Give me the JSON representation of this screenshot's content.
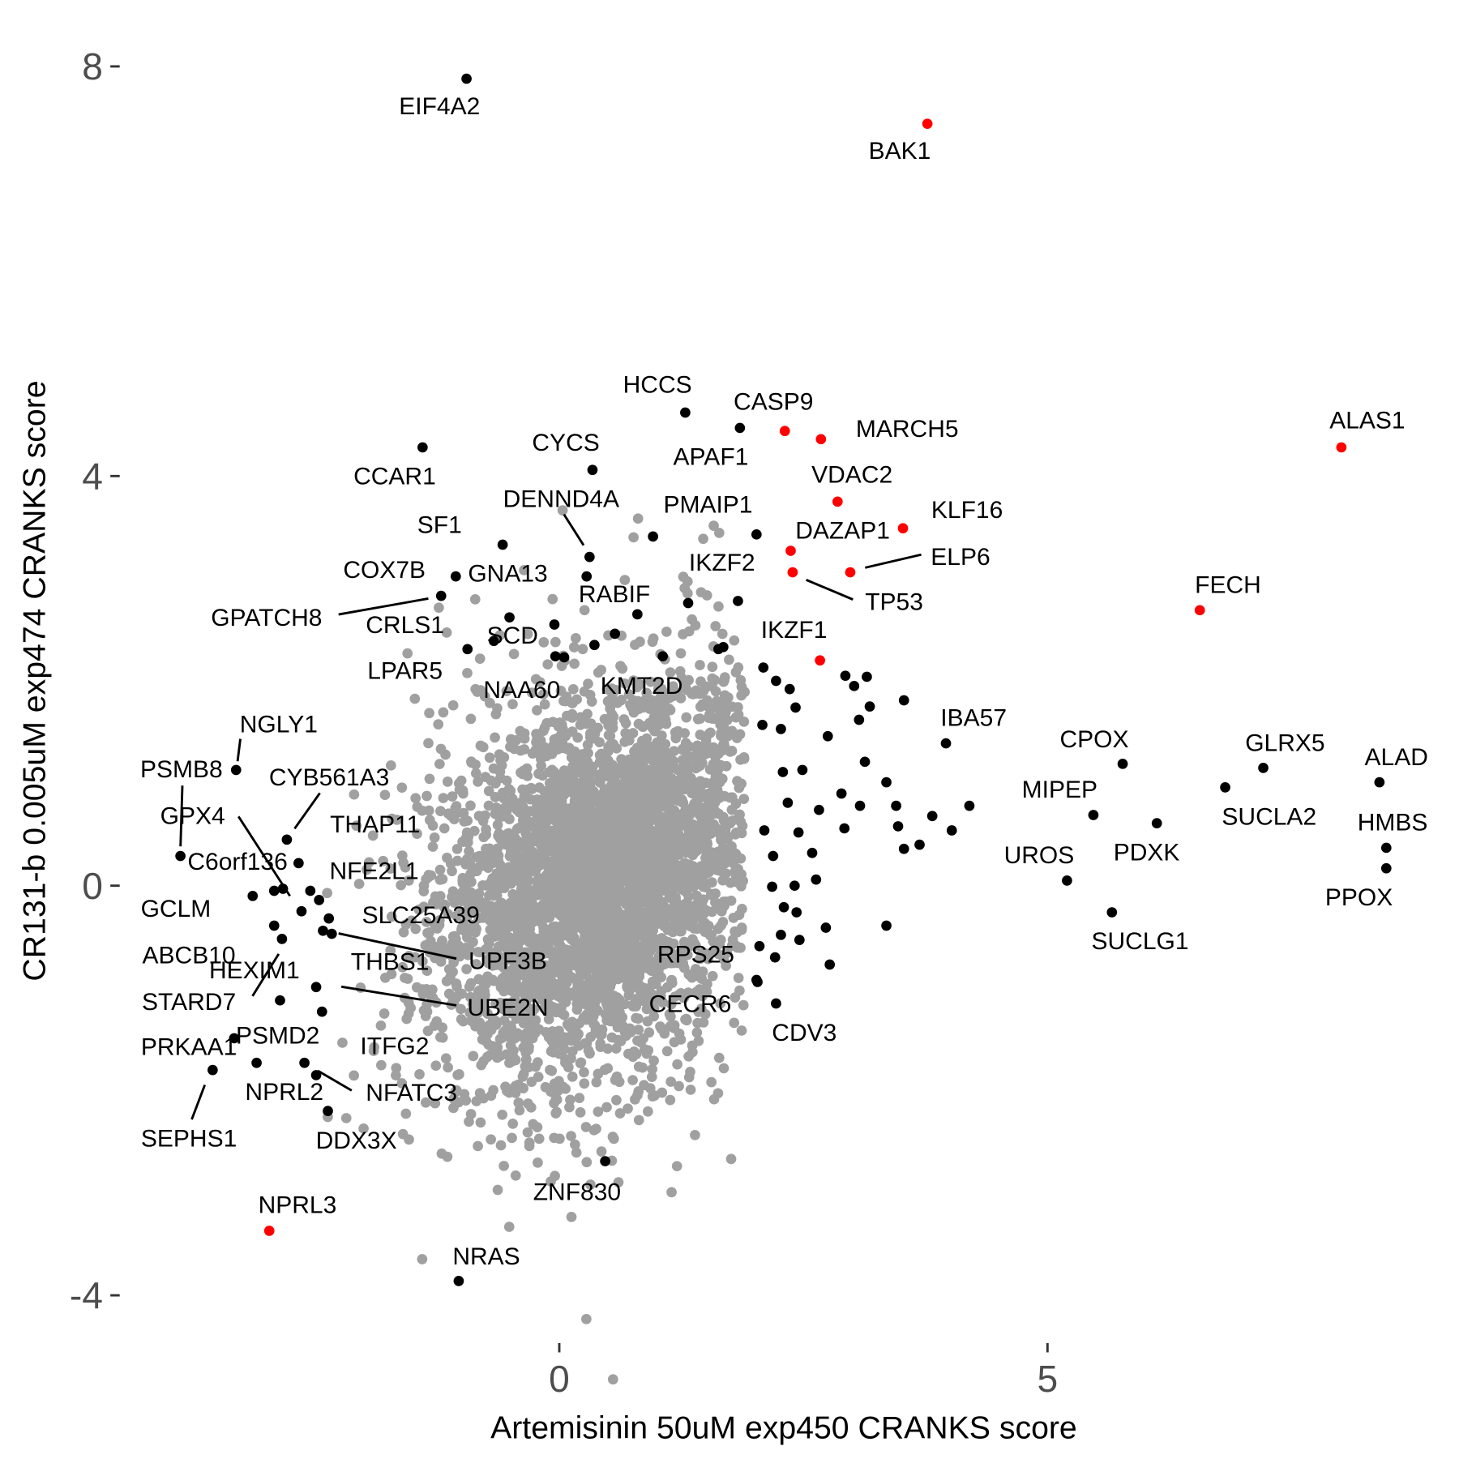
{
  "chart_data": {
    "type": "scatter",
    "title": "",
    "xlabel": "Artemisinin 50uM exp450 CRANKS score",
    "ylabel": "CR131-b 0.005uM exp474 CRANKS score",
    "xlim": [
      -4.3,
      8.9
    ],
    "ylim": [
      -4.6,
      8.3
    ],
    "x_ticks": [
      0,
      5
    ],
    "y_ticks": [
      -4,
      0,
      4,
      8
    ],
    "grid": false,
    "colors": {
      "background": "#a0a0a0",
      "hit": "#000000",
      "highlight": "#ff0000"
    },
    "background_cloud": {
      "n": 4000,
      "mean": [
        0.45,
        0.05
      ],
      "sd": [
        0.85,
        0.95
      ],
      "corr": 0.3
    },
    "labeled_points": [
      {
        "name": "EIF4A2",
        "x": -0.95,
        "y": 7.88,
        "highlight": false
      },
      {
        "name": "BAK1",
        "x": 3.77,
        "y": 7.44,
        "highlight": true
      },
      {
        "name": "HCCS",
        "x": 1.29,
        "y": 4.62,
        "highlight": false
      },
      {
        "name": "APAF1",
        "x": 1.85,
        "y": 4.47,
        "highlight": false
      },
      {
        "name": "CASP9",
        "x": 2.31,
        "y": 4.44,
        "highlight": true
      },
      {
        "name": "MARCH5",
        "x": 2.68,
        "y": 4.36,
        "highlight": true
      },
      {
        "name": "ALAS1",
        "x": 8.01,
        "y": 4.28,
        "highlight": true
      },
      {
        "name": "CCAR1",
        "x": -1.4,
        "y": 4.28,
        "highlight": false
      },
      {
        "name": "CYCS",
        "x": 0.34,
        "y": 4.06,
        "highlight": false
      },
      {
        "name": "VDAC2",
        "x": 2.85,
        "y": 3.75,
        "highlight": true
      },
      {
        "name": "KLF16",
        "x": 3.52,
        "y": 3.49,
        "highlight": true
      },
      {
        "name": "PMAIP1",
        "x": 0.96,
        "y": 3.41,
        "highlight": false
      },
      {
        "name": "IKZF2",
        "x": 2.02,
        "y": 3.43,
        "highlight": false
      },
      {
        "name": "SF1",
        "x": -0.58,
        "y": 3.33,
        "highlight": false
      },
      {
        "name": "DAZAP1",
        "x": 2.37,
        "y": 3.27,
        "highlight": true
      },
      {
        "name": "DENND4A",
        "x": 0.31,
        "y": 3.21,
        "highlight": false
      },
      {
        "name": "ELP6",
        "x": 2.98,
        "y": 3.06,
        "highlight": true
      },
      {
        "name": "TP53",
        "x": 2.39,
        "y": 3.06,
        "highlight": true
      },
      {
        "name": "GNA13",
        "x": 0.28,
        "y": 3.02,
        "highlight": false
      },
      {
        "name": "COX7B",
        "x": -1.06,
        "y": 3.02,
        "highlight": false
      },
      {
        "name": "GPATCH8",
        "x": -1.21,
        "y": 2.83,
        "highlight": false
      },
      {
        "name": "FECH",
        "x": 6.56,
        "y": 2.69,
        "highlight": true
      },
      {
        "name": "RABIF",
        "x": 0.8,
        "y": 2.65,
        "highlight": false
      },
      {
        "name": "CRLS1",
        "x": -0.51,
        "y": 2.62,
        "highlight": false
      },
      {
        "name": "SCD",
        "x": -0.67,
        "y": 2.39,
        "highlight": false
      },
      {
        "name": "LPAR5",
        "x": -0.94,
        "y": 2.31,
        "highlight": false
      },
      {
        "name": "IKZF1",
        "x": 2.67,
        "y": 2.2,
        "highlight": true
      },
      {
        "name": "NAA60",
        "x": -0.04,
        "y": 2.24,
        "highlight": false
      },
      {
        "name": "KMT2D",
        "x": 1.06,
        "y": 2.24,
        "highlight": false
      },
      {
        "name": "IBA57",
        "x": 3.96,
        "y": 1.39,
        "highlight": false
      },
      {
        "name": "NGLY1",
        "x": -3.31,
        "y": 1.13,
        "highlight": false
      },
      {
        "name": "CPOX",
        "x": 5.77,
        "y": 1.19,
        "highlight": false
      },
      {
        "name": "GLRX5",
        "x": 7.21,
        "y": 1.15,
        "highlight": false
      },
      {
        "name": "ALAD",
        "x": 8.4,
        "y": 1.01,
        "highlight": false
      },
      {
        "name": "SUCLA2",
        "x": 6.82,
        "y": 0.96,
        "highlight": false
      },
      {
        "name": "MIPEP",
        "x": 5.47,
        "y": 0.69,
        "highlight": false
      },
      {
        "name": "PDXK",
        "x": 6.12,
        "y": 0.61,
        "highlight": false
      },
      {
        "name": "CYB561A3",
        "x": -2.79,
        "y": 0.45,
        "highlight": false
      },
      {
        "name": "HMBS",
        "x": 8.47,
        "y": 0.37,
        "highlight": false
      },
      {
        "name": "PSMB8",
        "x": -3.88,
        "y": 0.29,
        "highlight": false
      },
      {
        "name": "C6orf136",
        "x": -2.67,
        "y": 0.22,
        "highlight": false
      },
      {
        "name": "PPOX",
        "x": 8.47,
        "y": 0.17,
        "highlight": false
      },
      {
        "name": "UROS",
        "x": 5.2,
        "y": 0.05,
        "highlight": false
      },
      {
        "name": "GPX4",
        "x": -2.83,
        "y": -0.03,
        "highlight": false
      },
      {
        "name": "GCLM",
        "x": -3.14,
        "y": -0.1,
        "highlight": false
      },
      {
        "name": "THAP11",
        "x": -2.46,
        "y": -0.14,
        "highlight": false
      },
      {
        "name": "NFE2L1",
        "x": -2.36,
        "y": -0.32,
        "highlight": false
      },
      {
        "name": "SLC25A39",
        "x": -2.64,
        "y": -0.25,
        "highlight": false
      },
      {
        "name": "SUCLG1",
        "x": 5.66,
        "y": -0.26,
        "highlight": false
      },
      {
        "name": "ABCB10",
        "x": -2.92,
        "y": -0.39,
        "highlight": false
      },
      {
        "name": "HEXIM1",
        "x": -2.84,
        "y": -0.52,
        "highlight": false
      },
      {
        "name": "UPF3B",
        "x": -2.33,
        "y": -0.47,
        "highlight": false
      },
      {
        "name": "THBS1",
        "x": -2.42,
        "y": -0.44,
        "highlight": false
      },
      {
        "name": "RPS25",
        "x": 2.05,
        "y": -0.59,
        "highlight": false
      },
      {
        "name": "UBE2N",
        "x": -2.49,
        "y": -0.99,
        "highlight": false
      },
      {
        "name": "CECR6",
        "x": 2.02,
        "y": -0.92,
        "highlight": false
      },
      {
        "name": "CDV3",
        "x": 2.22,
        "y": -1.15,
        "highlight": false
      },
      {
        "name": "STARD7",
        "x": -2.86,
        "y": -1.12,
        "highlight": false
      },
      {
        "name": "PSMD2",
        "x": -2.43,
        "y": -1.23,
        "highlight": false
      },
      {
        "name": "PRKAA1",
        "x": -3.33,
        "y": -1.49,
        "highlight": false
      },
      {
        "name": "ITFG2",
        "x": -3.1,
        "y": -1.73,
        "highlight": false
      },
      {
        "name": "NPRL2",
        "x": -2.61,
        "y": -1.73,
        "highlight": false
      },
      {
        "name": "SEPHS1",
        "x": -3.55,
        "y": -1.8,
        "highlight": false
      },
      {
        "name": "NFATC3",
        "x": -2.49,
        "y": -1.85,
        "highlight": false
      },
      {
        "name": "DDX3X",
        "x": -2.37,
        "y": -2.2,
        "highlight": false
      },
      {
        "name": "ZNF830",
        "x": 0.47,
        "y": -2.69,
        "highlight": false
      },
      {
        "name": "NPRL3",
        "x": -2.97,
        "y": -3.37,
        "highlight": true
      },
      {
        "name": "NRAS",
        "x": -1.03,
        "y": -3.86,
        "highlight": false
      }
    ],
    "unlabeled_hits": [
      [
        1.32,
        2.76
      ],
      [
        1.83,
        2.78
      ],
      [
        0.57,
        2.46
      ],
      [
        -0.05,
        2.55
      ],
      [
        1.63,
        2.31
      ],
      [
        1.68,
        2.33
      ],
      [
        0.05,
        2.23
      ],
      [
        0.36,
        2.35
      ],
      [
        2.09,
        2.13
      ],
      [
        2.22,
        2.0
      ],
      [
        2.36,
        1.92
      ],
      [
        2.42,
        1.74
      ],
      [
        2.93,
        2.05
      ],
      [
        3.15,
        2.04
      ],
      [
        3.02,
        1.95
      ],
      [
        3.18,
        1.75
      ],
      [
        3.53,
        1.81
      ],
      [
        2.08,
        1.57
      ],
      [
        2.27,
        1.53
      ],
      [
        3.07,
        1.62
      ],
      [
        2.75,
        1.46
      ],
      [
        2.29,
        1.11
      ],
      [
        2.49,
        1.13
      ],
      [
        2.89,
        0.9
      ],
      [
        3.13,
        1.21
      ],
      [
        3.35,
        1.01
      ],
      [
        3.08,
        0.78
      ],
      [
        3.45,
        0.78
      ],
      [
        4.2,
        0.78
      ],
      [
        3.82,
        0.68
      ],
      [
        4.02,
        0.54
      ],
      [
        3.47,
        0.58
      ],
      [
        3.69,
        0.4
      ],
      [
        3.53,
        0.36
      ],
      [
        2.92,
        0.56
      ],
      [
        2.66,
        0.74
      ],
      [
        2.34,
        0.81
      ],
      [
        2.1,
        0.54
      ],
      [
        2.19,
        0.29
      ],
      [
        2.45,
        0.52
      ],
      [
        2.59,
        0.32
      ],
      [
        2.63,
        0.06
      ],
      [
        2.41,
        0.0
      ],
      [
        2.18,
        -0.01
      ],
      [
        2.3,
        -0.21
      ],
      [
        2.43,
        -0.26
      ],
      [
        2.73,
        -0.41
      ],
      [
        2.46,
        -0.53
      ],
      [
        2.27,
        -0.48
      ],
      [
        3.35,
        -0.39
      ],
      [
        2.77,
        -0.77
      ],
      [
        2.21,
        -0.7
      ],
      [
        2.03,
        -0.94
      ],
      [
        -2.92,
        -0.05
      ],
      [
        -2.55,
        -0.05
      ]
    ]
  }
}
